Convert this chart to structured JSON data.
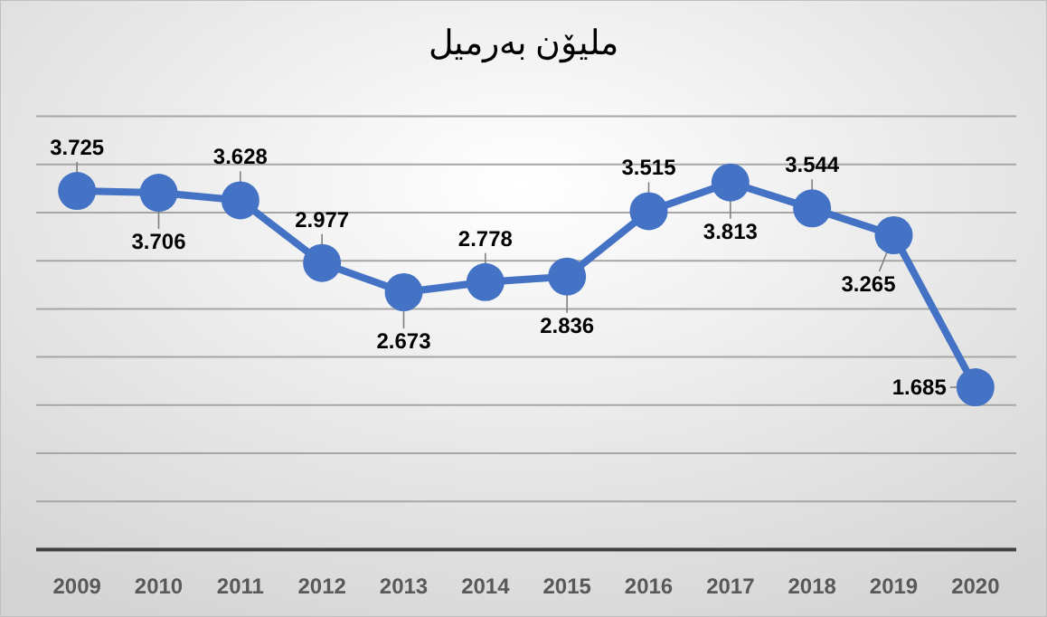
{
  "chart_data": {
    "type": "line",
    "title": "مليۆن بەرميل",
    "categories": [
      "2009",
      "2010",
      "2011",
      "2012",
      "2013",
      "2014",
      "2015",
      "2016",
      "2017",
      "2018",
      "2019",
      "2020"
    ],
    "series": [
      {
        "color": "#4472c4",
        "values": [
          3.725,
          3.706,
          3.628,
          2.977,
          2.673,
          2.778,
          2.836,
          3.515,
          3.813,
          3.544,
          3.265,
          1.685
        ]
      }
    ],
    "ylim": [
      0,
      4.5
    ],
    "yticks": [
      {
        "value": 0,
        "label": null
      },
      {
        "value": 0.5,
        "label": null
      },
      {
        "value": 1,
        "label": null
      },
      {
        "value": 1.5,
        "label": null
      },
      {
        "value": 2,
        "label": null
      },
      {
        "value": 2.5,
        "label": null
      },
      {
        "value": 3,
        "label": null
      },
      {
        "value": 3.5,
        "label": null
      },
      {
        "value": 4,
        "label": null
      },
      {
        "value": 4.5,
        "label": null
      }
    ],
    "grid": "y",
    "marker": "circle",
    "line_style": "solid",
    "data_labels": true,
    "tick_labels": "x"
  }
}
